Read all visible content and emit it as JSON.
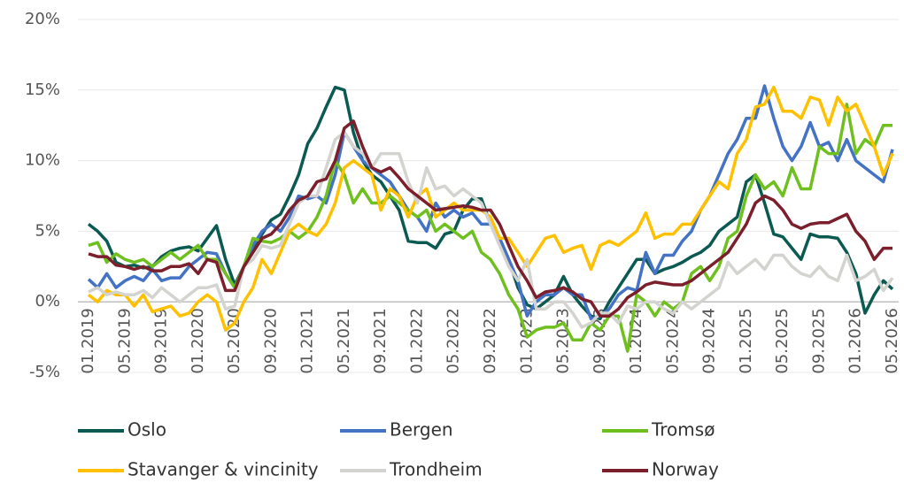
{
  "chart_data": {
    "type": "line",
    "categories": [
      "01.2019",
      null,
      null,
      null,
      "05.2019",
      null,
      null,
      null,
      "09.2019",
      null,
      null,
      null,
      "01.2020",
      null,
      null,
      null,
      "05.2020",
      null,
      null,
      null,
      "09.2020",
      null,
      null,
      null,
      "01.2021",
      null,
      null,
      null,
      "05.2021",
      null,
      null,
      null,
      "09.2021",
      null,
      null,
      null,
      "01.2022",
      null,
      null,
      null,
      "05.2022",
      null,
      null,
      null,
      "09.2022",
      null,
      null,
      null,
      "01.2023",
      null,
      null,
      null,
      "05.2023",
      null,
      null,
      null,
      "09.2023",
      null,
      null,
      null,
      "01.2024",
      null,
      null,
      null,
      "05.2024",
      null,
      null,
      null,
      "09.2024",
      null,
      null,
      null,
      "01.2025",
      null,
      null,
      null,
      "05.2025",
      null,
      null,
      null,
      "09.2025",
      null,
      null,
      null,
      "01.2026",
      null,
      null,
      null,
      "05.2026"
    ],
    "series": [
      {
        "name": "Oslo",
        "color": "#0b5a52",
        "values": [
          5.5,
          5.0,
          4.3,
          2.8,
          2.5,
          2.6,
          2.4,
          2.5,
          3.2,
          3.6,
          3.8,
          3.9,
          3.6,
          4.5,
          5.4,
          3.0,
          1.2,
          2.5,
          3.8,
          4.8,
          5.8,
          6.2,
          7.5,
          9.0,
          11.2,
          12.3,
          13.8,
          15.2,
          15.0,
          12.0,
          10.0,
          9.0,
          8.5,
          7.5,
          6.5,
          4.3,
          4.2,
          4.2,
          3.8,
          4.8,
          5.0,
          6.5,
          7.3,
          7.3,
          5.5,
          4.5,
          3.0,
          1.0,
          -0.2,
          -0.5,
          0.0,
          0.5,
          1.8,
          0.5,
          -0.3,
          -1.0,
          -1.2,
          0.0,
          1.0,
          2.0,
          3.0,
          3.0,
          2.0,
          2.3,
          2.5,
          2.8,
          3.2,
          3.5,
          4.0,
          5.0,
          5.5,
          6.0,
          8.5,
          9.0,
          7.0,
          4.8,
          4.6,
          3.8,
          3.0,
          4.8,
          4.6,
          4.6,
          4.5,
          3.5,
          2.0,
          -0.8,
          0.5,
          1.5,
          0.9
        ]
      },
      {
        "name": "Bergen",
        "color": "#4472c4",
        "values": [
          1.6,
          1.0,
          2.0,
          1.0,
          1.5,
          1.8,
          1.5,
          2.3,
          1.5,
          1.7,
          1.7,
          2.5,
          3.0,
          3.5,
          3.4,
          2.0,
          1.0,
          2.5,
          4.0,
          5.0,
          5.5,
          5.0,
          6.0,
          7.5,
          7.3,
          7.5,
          7.0,
          9.0,
          12.0,
          11.0,
          10.0,
          9.5,
          9.0,
          8.5,
          7.5,
          6.5,
          6.0,
          5.0,
          7.0,
          6.0,
          6.5,
          6.0,
          6.3,
          5.5,
          5.5,
          4.5,
          3.0,
          1.5,
          -1.0,
          0.0,
          0.5,
          0.5,
          1.0,
          0.5,
          0.5,
          -1.2,
          -1.0,
          -0.5,
          0.5,
          1.0,
          0.8,
          3.5,
          2.0,
          3.3,
          3.3,
          4.3,
          5.0,
          6.5,
          7.5,
          9.0,
          10.5,
          11.5,
          13.0,
          13.0,
          15.3,
          13.0,
          11.0,
          10.0,
          11.0,
          12.7,
          11.0,
          11.3,
          10.0,
          11.5,
          10.0,
          9.5,
          9.0,
          8.5,
          10.8
        ]
      },
      {
        "name": "Tromsø",
        "color": "#6fbf1f",
        "values": [
          4.0,
          4.2,
          2.8,
          3.4,
          3.0,
          2.8,
          3.0,
          2.5,
          3.0,
          3.5,
          3.0,
          3.5,
          4.0,
          3.0,
          3.0,
          2.0,
          1.0,
          2.5,
          4.5,
          4.3,
          4.2,
          4.5,
          5.0,
          4.5,
          5.0,
          6.0,
          7.5,
          10.0,
          9.0,
          7.0,
          8.0,
          7.0,
          7.0,
          7.5,
          7.0,
          6.5,
          6.0,
          6.5,
          5.0,
          5.5,
          5.0,
          4.5,
          5.0,
          3.5,
          3.0,
          2.0,
          0.5,
          -0.5,
          -2.5,
          -2.0,
          -1.8,
          -1.8,
          -1.5,
          -2.7,
          -2.7,
          -1.5,
          -2.0,
          -1.0,
          -1.0,
          -3.5,
          0.5,
          0.0,
          -1.0,
          0.0,
          -0.5,
          0.0,
          2.0,
          2.5,
          1.5,
          2.5,
          4.5,
          5.0,
          7.5,
          9.0,
          8.0,
          8.5,
          7.5,
          9.5,
          8.0,
          8.0,
          11.0,
          10.5,
          10.5,
          14.0,
          10.5,
          11.5,
          11.0,
          12.5,
          12.5
        ]
      },
      {
        "name": "Stavanger & vincinity",
        "color": "#ffc000",
        "values": [
          0.5,
          0.0,
          0.8,
          0.5,
          0.5,
          -0.3,
          0.5,
          -0.7,
          -0.5,
          -0.3,
          -1.0,
          -0.8,
          0.0,
          0.5,
          0.0,
          -2.0,
          -1.5,
          0.0,
          1.0,
          3.0,
          2.0,
          3.5,
          5.0,
          5.5,
          5.0,
          4.7,
          5.5,
          7.0,
          9.5,
          10.0,
          9.5,
          9.0,
          6.5,
          8.0,
          7.5,
          6.0,
          7.5,
          8.0,
          6.0,
          6.5,
          7.0,
          6.5,
          6.5,
          6.5,
          6.0,
          4.5,
          4.5,
          3.5,
          2.5,
          3.5,
          4.5,
          4.7,
          3.5,
          3.8,
          4.0,
          2.3,
          4.0,
          4.3,
          4.0,
          4.5,
          5.0,
          6.3,
          4.5,
          4.8,
          4.8,
          5.5,
          5.5,
          6.5,
          7.5,
          8.5,
          8.0,
          10.5,
          11.5,
          13.8,
          14.0,
          15.2,
          13.5,
          13.5,
          13.0,
          14.5,
          14.3,
          12.5,
          14.5,
          13.5,
          14.0,
          12.5,
          11.0,
          9.0,
          10.5
        ]
      },
      {
        "name": "Trondheim",
        "color": "#d3d3cf",
        "values": [
          0.7,
          1.0,
          0.5,
          0.7,
          0.5,
          0.5,
          0.8,
          0.3,
          1.0,
          0.5,
          0.0,
          0.5,
          1.0,
          1.0,
          1.2,
          -0.5,
          -0.3,
          2.5,
          3.0,
          4.0,
          3.8,
          4.0,
          5.5,
          7.0,
          7.5,
          7.5,
          9.5,
          11.5,
          12.0,
          11.0,
          10.5,
          9.5,
          10.5,
          10.5,
          10.5,
          8.5,
          7.0,
          9.5,
          8.0,
          8.2,
          7.5,
          8.0,
          7.5,
          7.0,
          5.5,
          4.0,
          2.5,
          1.5,
          3.0,
          -0.5,
          -0.5,
          0.0,
          0.0,
          -0.8,
          -1.8,
          -1.5,
          -0.8,
          -0.8,
          -1.5,
          -0.3,
          -0.5,
          0.0,
          0.0,
          -0.5,
          -0.8,
          0.0,
          -0.5,
          0.0,
          0.5,
          1.0,
          2.8,
          2.0,
          2.5,
          3.0,
          2.3,
          3.3,
          3.3,
          2.5,
          2.0,
          1.8,
          2.5,
          1.8,
          1.5,
          3.3,
          1.5,
          1.8,
          2.3,
          0.8,
          1.7
        ]
      },
      {
        "name": "Norway",
        "color": "#7a1f2b",
        "values": [
          3.4,
          3.2,
          3.2,
          2.6,
          2.5,
          2.3,
          2.5,
          2.2,
          2.2,
          2.5,
          2.5,
          2.7,
          2.0,
          3.0,
          2.8,
          0.8,
          0.8,
          2.5,
          3.5,
          4.5,
          4.8,
          5.5,
          6.5,
          7.2,
          7.5,
          8.5,
          8.7,
          10.0,
          12.3,
          12.8,
          11.0,
          9.5,
          9.2,
          9.5,
          8.8,
          8.0,
          7.5,
          7.0,
          6.5,
          6.6,
          6.7,
          6.8,
          6.7,
          6.5,
          6.5,
          5.5,
          4.0,
          2.5,
          1.5,
          0.3,
          0.7,
          0.8,
          1.0,
          0.7,
          0.2,
          0.0,
          -1.0,
          -1.0,
          -0.5,
          0.3,
          0.7,
          1.2,
          1.4,
          1.3,
          1.2,
          1.2,
          1.5,
          2.0,
          2.5,
          3.0,
          3.5,
          4.5,
          5.5,
          7.0,
          7.5,
          7.2,
          6.5,
          5.5,
          5.2,
          5.5,
          5.6,
          5.6,
          5.9,
          6.2,
          5.0,
          4.3,
          3.0,
          3.8,
          3.8
        ]
      }
    ],
    "ylim": [
      -5,
      20
    ],
    "yticks": [
      {
        "value": -5,
        "label": "-5%"
      },
      {
        "value": 0,
        "label": "0%"
      },
      {
        "value": 5,
        "label": "5%"
      },
      {
        "value": 10,
        "label": "10%"
      },
      {
        "value": 15,
        "label": "15%"
      },
      {
        "value": 20,
        "label": "20%"
      }
    ],
    "grid": true,
    "legend": "bottom"
  }
}
